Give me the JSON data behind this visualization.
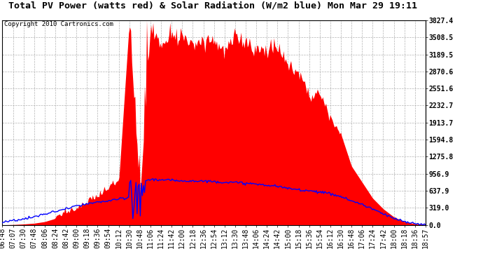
{
  "title": "Total PV Power (watts red) & Solar Radiation (W/m2 blue) Mon Mar 29 19:11",
  "copyright_text": "Copyright 2010 Cartronics.com",
  "y_ticks": [
    0.0,
    319.0,
    637.9,
    956.9,
    1275.8,
    1594.8,
    1913.7,
    2232.7,
    2551.6,
    2870.6,
    3189.5,
    3508.5,
    3827.4
  ],
  "x_labels": [
    "06:48",
    "07:07",
    "07:30",
    "07:48",
    "08:06",
    "08:24",
    "08:42",
    "09:00",
    "09:18",
    "09:36",
    "09:54",
    "10:12",
    "10:30",
    "10:48",
    "11:06",
    "11:24",
    "11:42",
    "12:00",
    "12:18",
    "12:36",
    "12:54",
    "13:12",
    "13:30",
    "13:48",
    "14:06",
    "14:24",
    "14:42",
    "15:00",
    "15:18",
    "15:36",
    "15:54",
    "16:12",
    "16:30",
    "16:48",
    "17:06",
    "17:24",
    "17:42",
    "18:00",
    "18:18",
    "18:36",
    "18:57"
  ],
  "pv_color": "#ff0000",
  "solar_color": "#0000ff",
  "bg_color": "#ffffff",
  "plot_bg_color": "#ffffff",
  "grid_color": "#aaaaaa",
  "title_fontsize": 9.5,
  "copyright_fontsize": 6.5,
  "tick_fontsize": 7
}
